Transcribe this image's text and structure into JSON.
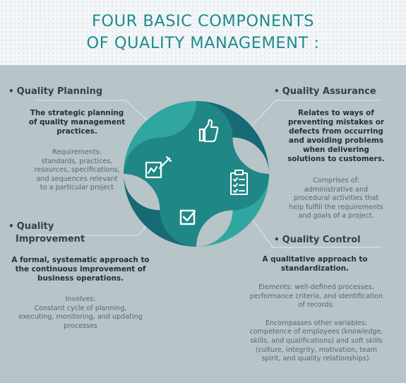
{
  "title": {
    "line1": "FOUR BASIC COMPONENTS",
    "line2": "OF QUALITY MANAGEMENT :"
  },
  "colors": {
    "background": "#b7c4c8",
    "title": "#1f8b8c",
    "wheel_light": "#2fa6a0",
    "wheel_mid": "#1f8786",
    "wheel_dark": "#176a73",
    "icon": "#ffffff"
  },
  "icons": {
    "planning": "edit-form-icon",
    "assurance": "thumbs-up-icon",
    "control": "clipboard-checklist-icon",
    "improvement": "checkbox-tick-icon"
  },
  "planning": {
    "bullet": "•",
    "title": "Quality Planning",
    "desc": [
      "The strategic planning",
      "of quality management",
      "practices."
    ],
    "detail": [
      "Requirements:",
      "standards, practices,",
      "resources, specifications,",
      "and sequences relevant",
      "to a particular project"
    ]
  },
  "assurance": {
    "bullet": "•",
    "title": "Quality Assurance",
    "desc": [
      "Relates to ways of",
      "preventing mistakes or",
      "defects from occurring",
      "and avoiding problems",
      "when delivering",
      "solutions to customers."
    ],
    "detail": [
      "Comprises of:",
      "administrative and",
      "procedural activities that",
      "help fulfill the requirements",
      "and goals of a project."
    ]
  },
  "improvement": {
    "bullet": "•",
    "title_line1": "Quality",
    "title_line2": "Improvement",
    "desc": [
      "A formal, systematic approach to",
      "the continuous improvement of",
      "business operations."
    ],
    "detail": [
      "Involves:",
      "Constant cycle of planning,",
      "executing, monitoring, and updating",
      "processes"
    ]
  },
  "control": {
    "bullet": "•",
    "title": "Quality Control",
    "desc": [
      "A qualitative approach to",
      "standardization."
    ],
    "detail1": [
      "Elements: well-defined processes,",
      "performance criteria, and identification",
      "of records."
    ],
    "detail2": [
      "Encompasses other variables:",
      "competence of employees (knowledge,",
      "skills, and qualifications) and soft skills",
      "(culture, integrity, motivation, team",
      "spirit, and quality relationships)."
    ]
  }
}
